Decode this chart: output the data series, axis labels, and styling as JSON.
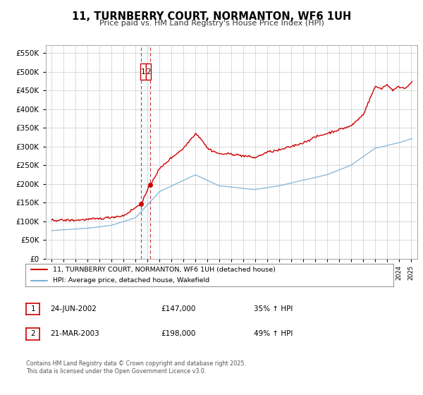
{
  "title": "11, TURNBERRY COURT, NORMANTON, WF6 1UH",
  "subtitle": "Price paid vs. HM Land Registry's House Price Index (HPI)",
  "red_label": "11, TURNBERRY COURT, NORMANTON, WF6 1UH (detached house)",
  "blue_label": "HPI: Average price, detached house, Wakefield",
  "red_color": "#cc0000",
  "blue_color": "#7bafd4",
  "vline_color": "#cc0000",
  "transaction1": {
    "num": "1",
    "date": "24-JUN-2002",
    "price": "£147,000",
    "pct": "35% ↑ HPI"
  },
  "transaction2": {
    "num": "2",
    "date": "21-MAR-2003",
    "price": "£198,000",
    "pct": "49% ↑ HPI"
  },
  "vline1_x": 2002.48,
  "vline2_x": 2003.22,
  "marker1_x": 2002.48,
  "marker1_y": 147000,
  "marker2_x": 2003.22,
  "marker2_y": 198000,
  "ylim": [
    0,
    570000
  ],
  "xlim": [
    1994.5,
    2025.5
  ],
  "yticks": [
    0,
    50000,
    100000,
    150000,
    200000,
    250000,
    300000,
    350000,
    400000,
    450000,
    500000,
    550000
  ],
  "footer": "Contains HM Land Registry data © Crown copyright and database right 2025.\nThis data is licensed under the Open Government Licence v3.0.",
  "background_color": "#ffffff",
  "grid_color": "#cccccc"
}
